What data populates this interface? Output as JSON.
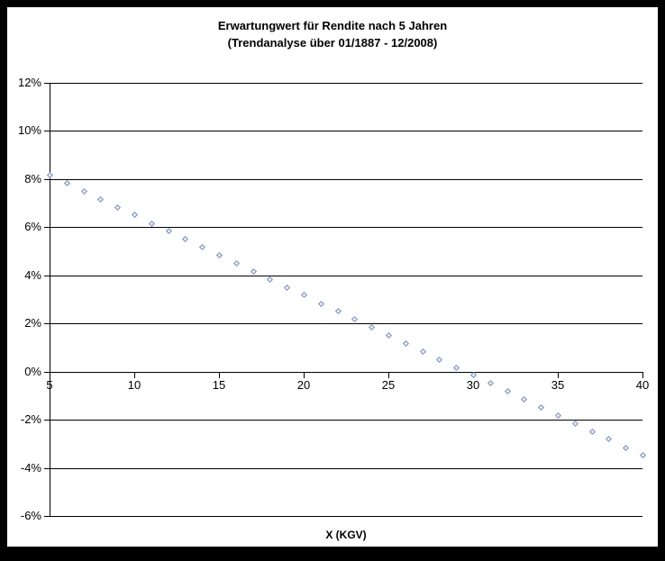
{
  "colors": {
    "frame": "#000000",
    "background": "#ffffff",
    "gridline": "#000000",
    "text": "#000000",
    "marker_fill": "#e9edf5",
    "marker_border": "#7b90ba"
  },
  "chart_data": {
    "type": "scatter",
    "title": "Erwartungwert für Rendite nach 5 Jahren",
    "subtitle": "(Trendanalyse über 01/1887 - 12/2008)",
    "xlabel": "X (KGV)",
    "ylabel": "",
    "xlim": [
      5,
      40
    ],
    "ylim": [
      -6,
      12
    ],
    "x_ticks": [
      5,
      10,
      15,
      20,
      25,
      30,
      35,
      40
    ],
    "y_ticks": [
      12,
      10,
      8,
      6,
      4,
      2,
      0,
      -2,
      -4,
      -6
    ],
    "y_tick_suffix": "%",
    "grid": "horizontal-only",
    "legend_position": "none",
    "marker": {
      "shape": "diamond",
      "fill_color": "#e9edf5",
      "border_color": "#7b90ba"
    },
    "series": [
      {
        "x": [
          5,
          6,
          7,
          8,
          9,
          10,
          11,
          12,
          13,
          14,
          15,
          16,
          17,
          18,
          19,
          20,
          21,
          22,
          23,
          24,
          25,
          26,
          27,
          28,
          29,
          30,
          31,
          32,
          33,
          34,
          35,
          36,
          37,
          38,
          39,
          40
        ],
        "y": [
          8.18,
          7.85,
          7.51,
          7.18,
          6.85,
          6.52,
          6.18,
          5.85,
          5.52,
          5.18,
          4.85,
          4.52,
          4.18,
          3.85,
          3.52,
          3.19,
          2.85,
          2.52,
          2.19,
          1.85,
          1.52,
          1.19,
          0.85,
          0.52,
          0.19,
          -0.14,
          -0.48,
          -0.81,
          -1.14,
          -1.47,
          -1.81,
          -2.14,
          -2.47,
          -2.8,
          -3.14,
          -3.47
        ]
      }
    ]
  }
}
